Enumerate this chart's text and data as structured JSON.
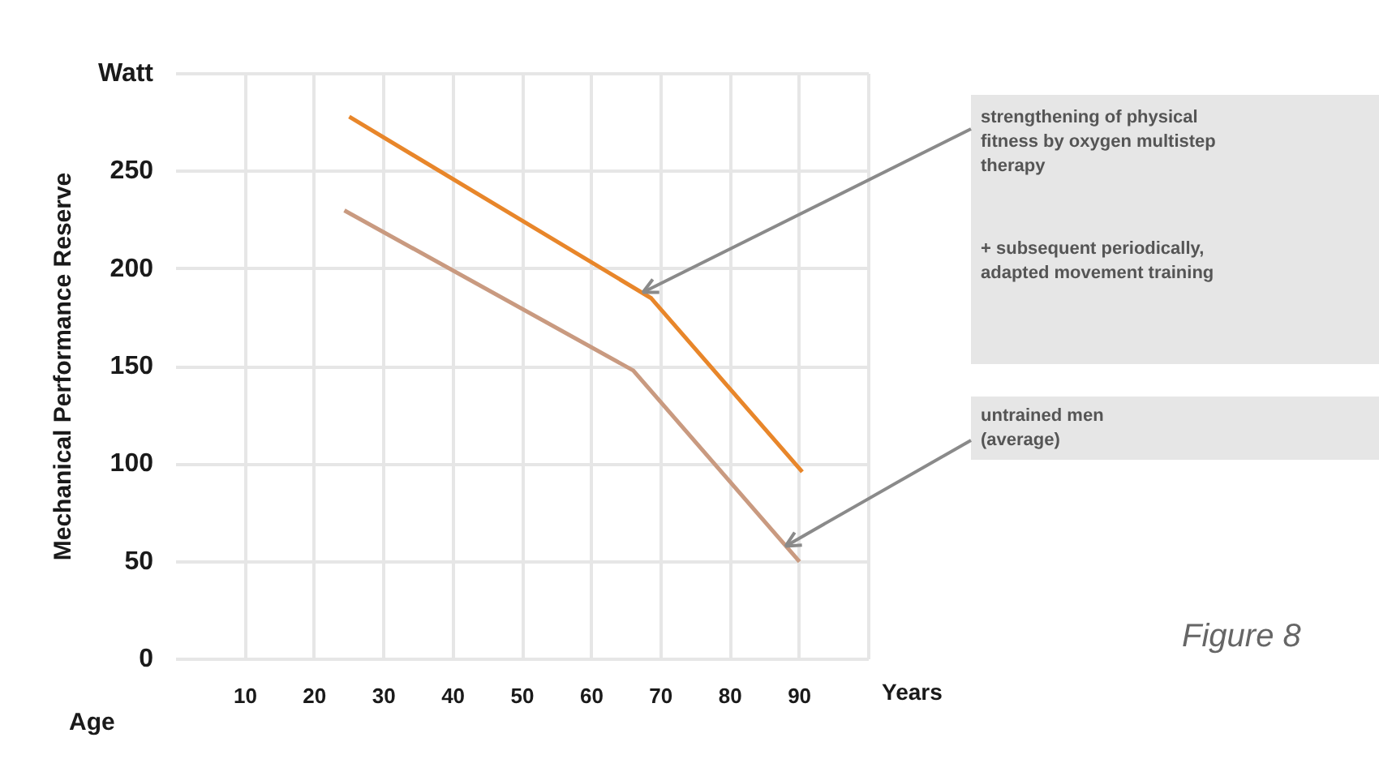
{
  "chart_data": {
    "type": "line",
    "xlabel": "Years",
    "ylabel": "Mechanical Performance Reserve",
    "xlim": [
      0,
      100
    ],
    "ylim": [
      0,
      300
    ],
    "xticks": [
      10,
      20,
      30,
      40,
      50,
      60,
      70,
      80,
      90
    ],
    "yticks": [
      0,
      50,
      100,
      150,
      200,
      250,
      {
        "value": 300,
        "label": "Watt"
      }
    ],
    "grid": true,
    "line_style": "solid",
    "series": [
      {
        "color": "#e8862a",
        "x": [
          25,
          68.6,
          90.4
        ],
        "values": [
          278,
          185,
          96
        ]
      },
      {
        "color": "#c99a80",
        "x": [
          24.3,
          66,
          90
        ],
        "values": [
          230,
          148,
          50
        ]
      }
    ],
    "annotations": [
      {
        "text": "strengthening of physical\nfitness by oxygen multistep\ntherapy",
        "x": 67.4,
        "y": 188
      },
      "+ subsequent periodically,\nadapted movement training",
      {
        "text": "untrained men\n(average)",
        "x": 88,
        "y": 58
      },
      "Age",
      "Figure 8"
    ]
  }
}
